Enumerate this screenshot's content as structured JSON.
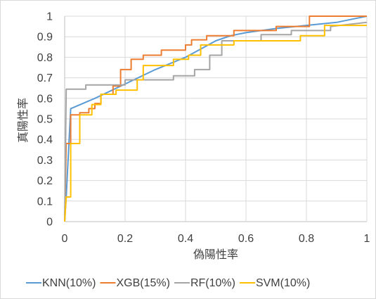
{
  "chart_data": {
    "type": "line",
    "title": "",
    "xlabel": "偽陽性率",
    "ylabel": "真陽性率",
    "xlim": [
      0,
      1
    ],
    "ylim": [
      0,
      1
    ],
    "x_ticks": [
      "0",
      "0.2",
      "0.4",
      "0.6",
      "0.8",
      "1"
    ],
    "y_ticks": [
      "0",
      "0.1",
      "0.2",
      "0.3",
      "0.4",
      "0.5",
      "0.6",
      "0.7",
      "0.8",
      "0.9",
      "1"
    ],
    "grid": "vertical and horizontal major gridlines",
    "legend_position": "bottom",
    "series": [
      {
        "name": "KNN(10%)",
        "color": "#5b9bd5",
        "step": false,
        "points": [
          [
            0,
            0
          ],
          [
            0.005,
            0.12
          ],
          [
            0.02,
            0.55
          ],
          [
            0.1,
            0.6
          ],
          [
            0.2,
            0.67
          ],
          [
            0.3,
            0.74
          ],
          [
            0.4,
            0.8
          ],
          [
            0.45,
            0.84
          ],
          [
            0.5,
            0.88
          ],
          [
            0.55,
            0.905
          ],
          [
            0.6,
            0.92
          ],
          [
            0.7,
            0.94
          ],
          [
            0.8,
            0.955
          ],
          [
            0.9,
            0.97
          ],
          [
            1,
            1
          ]
        ]
      },
      {
        "name": "XGB(15%)",
        "color": "#ed7d31",
        "step": true,
        "points": [
          [
            0,
            0
          ],
          [
            0.005,
            0.38
          ],
          [
            0.02,
            0.38
          ],
          [
            0.02,
            0.52
          ],
          [
            0.05,
            0.52
          ],
          [
            0.05,
            0.53
          ],
          [
            0.08,
            0.53
          ],
          [
            0.08,
            0.55
          ],
          [
            0.1,
            0.55
          ],
          [
            0.1,
            0.575
          ],
          [
            0.12,
            0.575
          ],
          [
            0.12,
            0.62
          ],
          [
            0.16,
            0.62
          ],
          [
            0.16,
            0.66
          ],
          [
            0.185,
            0.66
          ],
          [
            0.185,
            0.74
          ],
          [
            0.22,
            0.74
          ],
          [
            0.22,
            0.79
          ],
          [
            0.26,
            0.79
          ],
          [
            0.26,
            0.81
          ],
          [
            0.32,
            0.81
          ],
          [
            0.32,
            0.835
          ],
          [
            0.4,
            0.835
          ],
          [
            0.4,
            0.86
          ],
          [
            0.42,
            0.86
          ],
          [
            0.42,
            0.885
          ],
          [
            0.47,
            0.885
          ],
          [
            0.47,
            0.905
          ],
          [
            0.56,
            0.905
          ],
          [
            0.56,
            0.93
          ],
          [
            0.7,
            0.93
          ],
          [
            0.7,
            0.95
          ],
          [
            0.81,
            0.95
          ],
          [
            0.81,
            1
          ],
          [
            1,
            1
          ]
        ]
      },
      {
        "name": "RF(10%)",
        "color": "#a5a5a5",
        "step": true,
        "points": [
          [
            0,
            0
          ],
          [
            0.005,
            0.645
          ],
          [
            0.07,
            0.645
          ],
          [
            0.07,
            0.665
          ],
          [
            0.2,
            0.665
          ],
          [
            0.2,
            0.69
          ],
          [
            0.36,
            0.69
          ],
          [
            0.36,
            0.71
          ],
          [
            0.43,
            0.71
          ],
          [
            0.43,
            0.74
          ],
          [
            0.48,
            0.74
          ],
          [
            0.48,
            0.81
          ],
          [
            0.52,
            0.81
          ],
          [
            0.52,
            0.88
          ],
          [
            0.65,
            0.88
          ],
          [
            0.65,
            0.91
          ],
          [
            0.75,
            0.91
          ],
          [
            0.75,
            0.93
          ],
          [
            0.88,
            0.93
          ],
          [
            0.88,
            0.95
          ],
          [
            1,
            0.97
          ]
        ]
      },
      {
        "name": "SVM(10%)",
        "color": "#ffc000",
        "step": true,
        "points": [
          [
            0,
            0
          ],
          [
            0.005,
            0.12
          ],
          [
            0.02,
            0.12
          ],
          [
            0.02,
            0.38
          ],
          [
            0.05,
            0.38
          ],
          [
            0.05,
            0.52
          ],
          [
            0.09,
            0.52
          ],
          [
            0.09,
            0.57
          ],
          [
            0.12,
            0.57
          ],
          [
            0.12,
            0.62
          ],
          [
            0.17,
            0.62
          ],
          [
            0.17,
            0.64
          ],
          [
            0.24,
            0.64
          ],
          [
            0.24,
            0.69
          ],
          [
            0.26,
            0.69
          ],
          [
            0.26,
            0.76
          ],
          [
            0.36,
            0.76
          ],
          [
            0.36,
            0.79
          ],
          [
            0.41,
            0.79
          ],
          [
            0.41,
            0.81
          ],
          [
            0.45,
            0.81
          ],
          [
            0.45,
            0.86
          ],
          [
            0.56,
            0.86
          ],
          [
            0.56,
            0.88
          ],
          [
            0.78,
            0.88
          ],
          [
            0.78,
            0.905
          ],
          [
            0.86,
            0.905
          ],
          [
            0.86,
            0.955
          ],
          [
            1,
            0.955
          ]
        ]
      }
    ]
  }
}
